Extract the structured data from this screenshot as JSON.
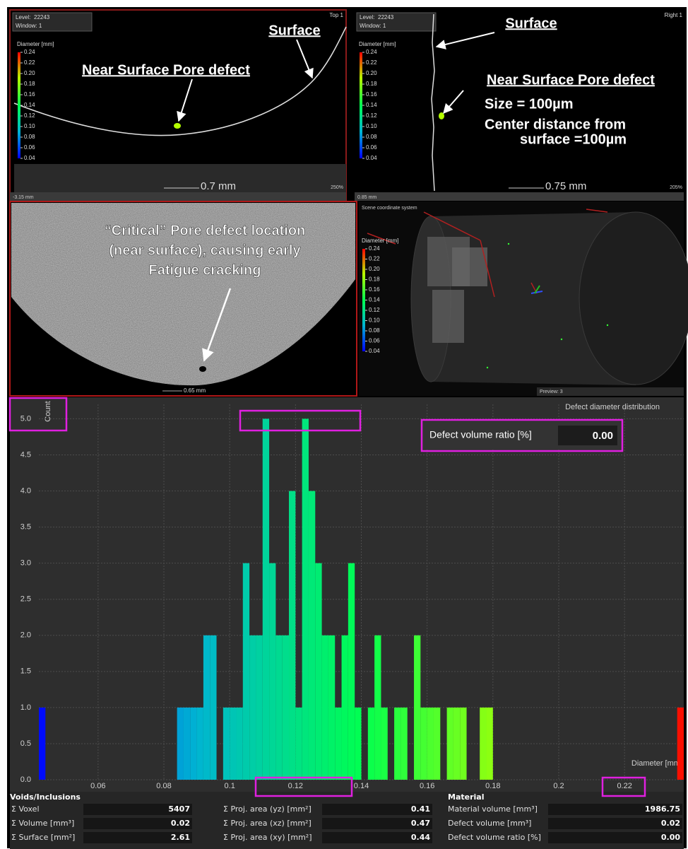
{
  "panels": {
    "top_left": {
      "level_label": "Level:",
      "level": "22243",
      "window": "Window: 1",
      "view": "Top 1",
      "surface": "Surface",
      "defect": "Near Surface Pore defect",
      "scale": "0.7 mm",
      "position": "-3.15 mm",
      "zoom": "250%"
    },
    "top_right": {
      "level_label": "Level:",
      "level": "22243",
      "window": "Window: 1",
      "view": "Right 1",
      "surface": "Surface",
      "defect": "Near Surface Pore defect",
      "size": "Size = 100µm",
      "distance_1": "Center distance from",
      "distance_2": "surface =100µm",
      "scale": "0.75 mm",
      "position": "0.85 mm",
      "zoom": "205%"
    },
    "middle_left": {
      "note": [
        "“Critical” Pore defect location",
        "(near surface), causing early",
        "Fatigue cracking"
      ],
      "scale": "0.65 mm"
    },
    "middle_right": {
      "title": "Scene coordinate system",
      "preview": "Preview: 3"
    }
  },
  "legend_scale": {
    "title": "Diameter [mm]",
    "ticks": [
      0.24,
      0.22,
      {
        "value": 0.2,
        "label": "0.20"
      },
      0.18,
      0.16,
      0.14,
      0.12,
      {
        "value": 0.1,
        "label": "0.10"
      },
      0.08,
      0.06,
      0.04
    ]
  },
  "volume_ratio": {
    "label": "Defect volume ratio [%]",
    "value": "0.00"
  },
  "chart_data": {
    "type": "histogram",
    "title": "Defect diameter distribution",
    "x_label": "Diameter [mm]",
    "y_label": "Count",
    "bins": [
      0.042,
      0.044,
      0.046,
      0.048,
      0.05,
      0.052,
      0.054,
      0.056,
      0.058,
      0.06,
      0.062,
      0.064,
      0.066,
      0.068,
      0.07,
      0.072,
      0.074,
      0.076,
      0.078,
      0.08,
      0.082,
      0.084,
      0.086,
      0.088,
      0.09,
      0.092,
      0.094,
      0.096,
      0.098,
      0.1,
      0.102,
      0.104,
      0.106,
      0.108,
      0.11,
      0.112,
      0.114,
      0.116,
      0.118,
      0.12,
      0.122,
      0.124,
      0.126,
      0.128,
      0.13,
      0.132,
      0.134,
      0.136,
      0.138,
      0.14,
      0.142,
      0.144,
      0.146,
      0.148,
      0.15,
      0.152,
      0.154,
      0.156,
      0.158,
      0.16,
      0.162,
      0.164,
      0.166,
      0.168,
      0.17,
      0.172,
      0.174,
      0.176,
      0.178,
      0.18,
      0.182,
      0.184,
      0.186,
      0.188,
      0.19,
      0.192,
      0.194,
      0.196,
      0.198,
      0.2,
      0.202,
      0.204,
      0.206,
      0.208,
      0.21,
      0.212,
      0.214,
      0.216,
      0.218,
      0.22,
      0.222,
      0.224,
      0.226,
      0.228,
      0.23,
      0.232,
      0.234,
      0.236,
      0.238
    ],
    "counts": [
      1,
      0,
      0,
      0,
      0,
      0,
      0,
      0,
      0,
      0,
      0,
      0,
      0,
      0,
      0,
      0,
      0,
      0,
      0,
      0,
      0,
      1,
      1,
      1,
      1,
      2,
      2,
      0,
      1,
      1,
      1,
      3,
      2,
      2,
      5,
      3,
      2,
      2,
      4,
      1,
      5,
      4,
      3,
      2,
      2,
      1,
      2,
      3,
      1,
      0,
      1,
      2,
      1,
      0,
      1,
      1,
      0,
      2,
      1,
      1,
      1,
      0,
      1,
      1,
      1,
      0,
      0,
      1,
      1,
      0,
      0,
      0,
      0,
      0,
      0,
      0,
      0,
      0,
      0,
      0,
      0,
      0,
      0,
      0,
      0,
      0,
      0,
      0,
      0,
      0,
      0,
      0,
      0,
      0,
      0,
      0,
      0,
      1
    ],
    "xlim": [
      0.042,
      0.238
    ],
    "ylim": [
      0,
      5.2
    ],
    "xticks": [
      0.06,
      0.08,
      0.1,
      0.12,
      0.14,
      0.16,
      0.18,
      0.2,
      0.22
    ],
    "yticks": [
      {
        "value": 0,
        "label": "0.0"
      },
      {
        "value": 0.5,
        "label": "0.5"
      },
      {
        "value": 1,
        "label": "1.0"
      },
      {
        "value": 1.5,
        "label": "1.5"
      },
      {
        "value": 2,
        "label": "2.0"
      },
      {
        "value": 2.5,
        "label": "2.5"
      },
      {
        "value": 3,
        "label": "3.0"
      },
      {
        "value": 3.5,
        "label": "3.5"
      },
      {
        "value": 4,
        "label": "4.0"
      },
      {
        "value": 4.5,
        "label": "4.5"
      },
      {
        "value": 5,
        "label": "5.0"
      }
    ],
    "grid": true,
    "colorscale": [
      "#0000ff",
      "#00b4d2",
      "#00ff50",
      "#b4ff00",
      "#ff0000"
    ]
  },
  "results": {
    "voids_title": "Voids/Inclusions",
    "material_title": "Material",
    "voids": [
      [
        "Σ Voxel",
        "5407"
      ],
      [
        "Σ Volume [mm³]",
        "0.02"
      ],
      [
        "Σ Surface [mm²]",
        "2.61"
      ]
    ],
    "projections": [
      [
        "Σ Proj. area (yz) [mm²]",
        "0.41"
      ],
      [
        "Σ Proj. area (xz) [mm²]",
        "0.47"
      ],
      [
        "Σ Proj. area (xy) [mm²]",
        "0.44"
      ]
    ],
    "material": [
      [
        "Material volume [mm³]",
        "1986.75"
      ],
      [
        "Defect volume [mm³]",
        "0.02"
      ],
      [
        "Defect volume ratio [%]",
        "0.00"
      ]
    ]
  }
}
